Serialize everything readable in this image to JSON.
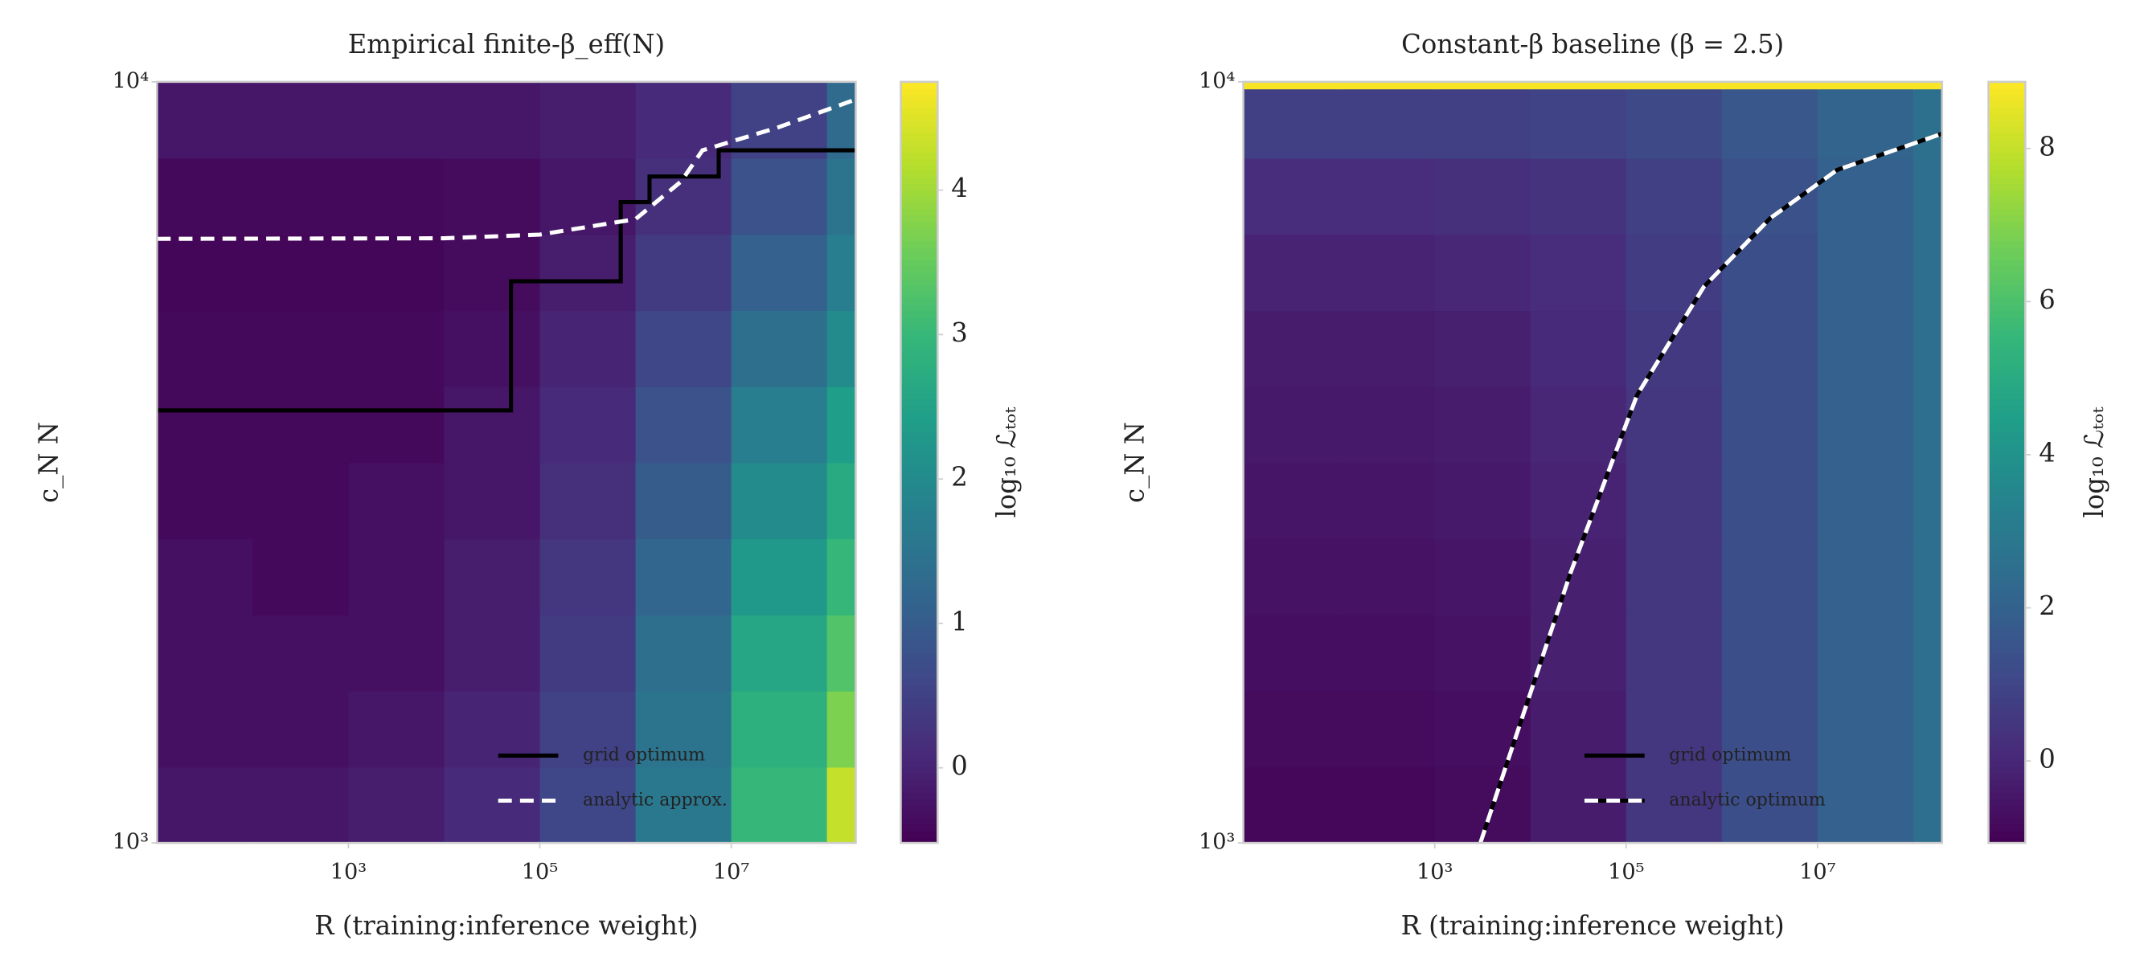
{
  "chart_data": [
    {
      "type": "heatmap",
      "title": "Empirical finite-β_eff(N)",
      "xlabel": "R (training:inference weight)",
      "ylabel": "c_N N",
      "log_x": true,
      "log_y": true,
      "xlim": [
        10,
        200000000
      ],
      "ylim": [
        1000,
        10000
      ],
      "xticks": [
        {
          "value": 1000,
          "label": "10³"
        },
        {
          "value": 100000,
          "label": "10⁵"
        },
        {
          "value": 10000000,
          "label": "10⁷"
        }
      ],
      "yticks": [
        {
          "value": 1000,
          "label": "10³"
        },
        {
          "value": 10000,
          "label": "10⁴"
        }
      ],
      "colormap": "viridis",
      "x_edges": [
        10,
        100,
        1000,
        10000,
        100000,
        1000000,
        10000000,
        100000000,
        200000000
      ],
      "y_edges": [
        1000,
        1259,
        1585,
        1995,
        2512,
        3162,
        3981,
        5012,
        6310,
        7943,
        10000
      ],
      "z": [
        [
          -0.2,
          -0.2,
          -0.1,
          0.1,
          0.6,
          1.6,
          3.0,
          4.3
        ],
        [
          -0.3,
          -0.3,
          -0.2,
          0,
          0.5,
          1.5,
          2.8,
          3.7
        ],
        [
          -0.3,
          -0.3,
          -0.3,
          -0.1,
          0.4,
          1.4,
          2.6,
          3.3
        ],
        [
          -0.3,
          -0.4,
          -0.3,
          -0.1,
          0.3,
          1.2,
          2.3,
          3.0
        ],
        [
          -0.4,
          -0.4,
          -0.3,
          -0.2,
          0.2,
          1.0,
          2.0,
          2.7
        ],
        [
          -0.4,
          -0.4,
          -0.4,
          -0.2,
          0.1,
          0.8,
          1.7,
          2.4
        ],
        [
          -0.4,
          -0.4,
          -0.4,
          -0.3,
          0,
          0.6,
          1.4,
          2.0
        ],
        [
          -0.45,
          -0.45,
          -0.45,
          -0.35,
          -0.1,
          0.4,
          1.1,
          1.7
        ],
        [
          -0.4,
          -0.4,
          -0.4,
          -0.35,
          -0.2,
          0.2,
          0.8,
          1.5
        ],
        [
          -0.2,
          -0.2,
          -0.2,
          -0.2,
          -0.1,
          0.1,
          0.5,
          1.3
        ]
      ],
      "colorbar": {
        "label": "log₁₀ ℒₜₒₜ",
        "clim": [
          -0.52,
          4.75
        ],
        "ticks": [
          0,
          1,
          2,
          3,
          4
        ]
      },
      "legend": "lower right",
      "series": [
        {
          "name": "grid optimum",
          "color": "#000000",
          "dash": false,
          "x": [
            10,
            50000,
            50000,
            700000,
            700000,
            1400000,
            1400000,
            7400000,
            7400000,
            200000000
          ],
          "values": [
            3700,
            3700,
            5470,
            5470,
            6950,
            6950,
            7510,
            7510,
            8130,
            8130
          ]
        },
        {
          "name": "analytic approx.",
          "color": "#ffffff",
          "dash": true,
          "x": [
            10,
            10000,
            100000,
            1000000,
            3000000,
            5000000,
            30000000,
            200000000
          ],
          "values": [
            6220,
            6230,
            6300,
            6600,
            7400,
            8130,
            8700,
            9480
          ]
        }
      ]
    },
    {
      "type": "heatmap",
      "title": "Constant-β baseline (β = 2.5)",
      "xlabel": "R (training:inference weight)",
      "ylabel": "c_N N",
      "log_x": true,
      "log_y": true,
      "xlim": [
        10,
        200000000
      ],
      "ylim": [
        1000,
        10000
      ],
      "xticks": [
        {
          "value": 1000,
          "label": "10³"
        },
        {
          "value": 100000,
          "label": "10⁵"
        },
        {
          "value": 10000000,
          "label": "10⁷"
        }
      ],
      "yticks": [
        {
          "value": 1000,
          "label": "10³"
        },
        {
          "value": 10000,
          "label": "10⁴"
        }
      ],
      "colormap": "viridis",
      "x_edges": [
        10,
        100,
        1000,
        10000,
        100000,
        1000000,
        10000000,
        100000000,
        200000000
      ],
      "y_edges": [
        1000,
        1259,
        1585,
        1995,
        2512,
        3162,
        3981,
        5012,
        6310,
        7943,
        9800,
        10000
      ],
      "z": [
        [
          -0.9,
          -0.9,
          -0.8,
          -0.3,
          0.5,
          1.3,
          2.0,
          2.5
        ],
        [
          -0.8,
          -0.8,
          -0.7,
          -0.3,
          0.5,
          1.3,
          2.0,
          2.5
        ],
        [
          -0.7,
          -0.7,
          -0.6,
          -0.2,
          0.5,
          1.3,
          2.0,
          2.5
        ],
        [
          -0.6,
          -0.6,
          -0.5,
          -0.2,
          0.5,
          1.3,
          2.0,
          2.5
        ],
        [
          -0.5,
          -0.5,
          -0.4,
          -0.1,
          0.5,
          1.3,
          2.0,
          2.5
        ],
        [
          -0.4,
          -0.4,
          -0.3,
          0,
          0.5,
          1.3,
          2.0,
          2.5
        ],
        [
          -0.3,
          -0.3,
          -0.2,
          0.1,
          0.6,
          1.3,
          2.0,
          2.5
        ],
        [
          -0.1,
          -0.1,
          0,
          0.2,
          0.7,
          1.3,
          2.0,
          2.5
        ],
        [
          0.2,
          0.2,
          0.3,
          0.4,
          0.8,
          1.4,
          2.0,
          2.5
        ],
        [
          0.8,
          0.8,
          0.8,
          0.9,
          1.1,
          1.6,
          2.1,
          2.6
        ],
        [
          8.8,
          8.8,
          8.8,
          8.8,
          8.8,
          8.8,
          8.8,
          8.8
        ]
      ],
      "colorbar": {
        "label": "log₁₀ ℒₜₒₜ",
        "clim": [
          -1.07,
          8.87
        ],
        "ticks": [
          0,
          2,
          4,
          6,
          8
        ]
      },
      "legend": "lower right",
      "series": [
        {
          "name": "grid optimum",
          "color": "#000000",
          "dash": false,
          "x": [
            3000,
            26300,
            130000,
            650000,
            3200000,
            16000000,
            200000000
          ],
          "values": [
            1000,
            2265,
            3875,
            5380,
            6620,
            7660,
            8550
          ]
        },
        {
          "name": "analytic optimum",
          "color": "#ffffff",
          "dash": true,
          "x": [
            3000,
            26300,
            130000,
            650000,
            3200000,
            16000000,
            200000000
          ],
          "values": [
            1000,
            2265,
            3875,
            5380,
            6620,
            7660,
            8550
          ]
        }
      ]
    }
  ]
}
